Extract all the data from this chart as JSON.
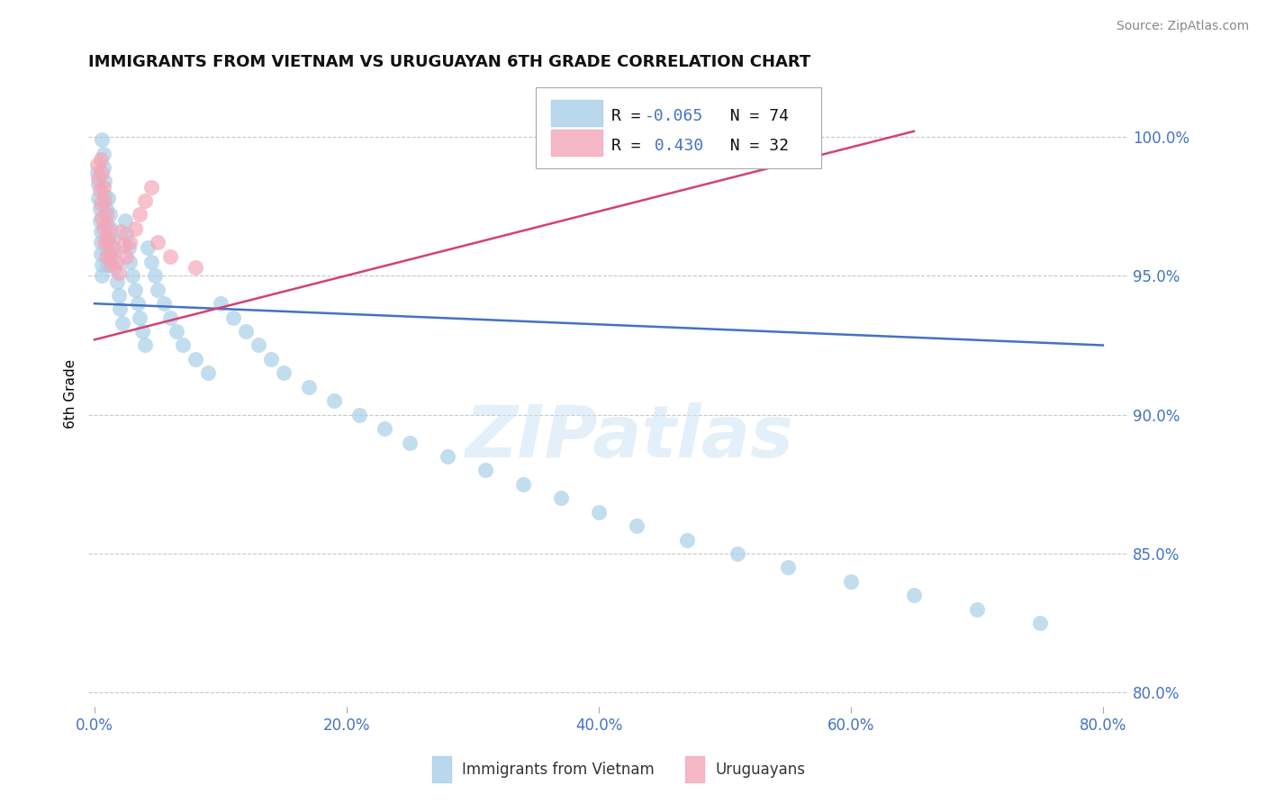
{
  "title": "IMMIGRANTS FROM VIETNAM VS URUGUAYAN 6TH GRADE CORRELATION CHART",
  "source": "Source: ZipAtlas.com",
  "ylabel": "6th Grade",
  "legend_label1": "Immigrants from Vietnam",
  "legend_label2": "Uruguayans",
  "r1": -0.065,
  "n1": 74,
  "r2": 0.43,
  "n2": 32,
  "color_blue": "#a8cfe8",
  "color_pink": "#f4a7b9",
  "color_blue_line": "#4472c4",
  "color_pink_line": "#d44270",
  "color_axis_text": "#4472c4",
  "color_grid": "#c8c8c8",
  "color_r_value": "#4472c4",
  "color_n_value": "#111111",
  "watermark": "ZIPatlas",
  "blue_x": [
    0.002,
    0.003,
    0.003,
    0.004,
    0.004,
    0.005,
    0.005,
    0.005,
    0.006,
    0.006,
    0.006,
    0.007,
    0.007,
    0.008,
    0.008,
    0.009,
    0.009,
    0.01,
    0.01,
    0.01,
    0.011,
    0.012,
    0.013,
    0.014,
    0.015,
    0.016,
    0.018,
    0.019,
    0.02,
    0.022,
    0.024,
    0.025,
    0.027,
    0.028,
    0.03,
    0.032,
    0.034,
    0.036,
    0.038,
    0.04,
    0.042,
    0.045,
    0.048,
    0.05,
    0.055,
    0.06,
    0.065,
    0.07,
    0.08,
    0.09,
    0.1,
    0.11,
    0.12,
    0.13,
    0.14,
    0.15,
    0.17,
    0.19,
    0.21,
    0.23,
    0.25,
    0.28,
    0.31,
    0.34,
    0.37,
    0.4,
    0.43,
    0.47,
    0.51,
    0.55,
    0.6,
    0.65,
    0.7,
    0.75
  ],
  "blue_y": [
    0.987,
    0.983,
    0.978,
    0.974,
    0.97,
    0.966,
    0.962,
    0.958,
    0.954,
    0.95,
    0.999,
    0.994,
    0.989,
    0.984,
    0.979,
    0.974,
    0.969,
    0.964,
    0.959,
    0.954,
    0.978,
    0.972,
    0.967,
    0.963,
    0.958,
    0.953,
    0.948,
    0.943,
    0.938,
    0.933,
    0.97,
    0.965,
    0.96,
    0.955,
    0.95,
    0.945,
    0.94,
    0.935,
    0.93,
    0.925,
    0.96,
    0.955,
    0.95,
    0.945,
    0.94,
    0.935,
    0.93,
    0.925,
    0.92,
    0.915,
    0.94,
    0.935,
    0.93,
    0.925,
    0.92,
    0.915,
    0.91,
    0.905,
    0.9,
    0.895,
    0.89,
    0.885,
    0.88,
    0.875,
    0.87,
    0.865,
    0.86,
    0.855,
    0.85,
    0.845,
    0.84,
    0.835,
    0.83,
    0.825
  ],
  "pink_x": [
    0.002,
    0.003,
    0.004,
    0.005,
    0.005,
    0.006,
    0.006,
    0.007,
    0.007,
    0.008,
    0.008,
    0.009,
    0.009,
    0.01,
    0.01,
    0.011,
    0.012,
    0.013,
    0.015,
    0.017,
    0.019,
    0.021,
    0.023,
    0.025,
    0.028,
    0.032,
    0.036,
    0.04,
    0.045,
    0.05,
    0.06,
    0.08
  ],
  "pink_y": [
    0.99,
    0.985,
    0.981,
    0.992,
    0.976,
    0.987,
    0.971,
    0.982,
    0.967,
    0.977,
    0.962,
    0.972,
    0.957,
    0.968,
    0.963,
    0.963,
    0.958,
    0.954,
    0.96,
    0.955,
    0.951,
    0.966,
    0.961,
    0.957,
    0.962,
    0.967,
    0.972,
    0.977,
    0.982,
    0.962,
    0.957,
    0.953
  ],
  "blue_line_x": [
    0.0,
    0.8
  ],
  "blue_line_y": [
    0.94,
    0.925
  ],
  "pink_line_x": [
    0.0,
    0.65
  ],
  "pink_line_y": [
    0.927,
    1.002
  ],
  "xlim": [
    -0.005,
    0.82
  ],
  "ylim": [
    0.795,
    1.02
  ],
  "xticks": [
    0.0,
    0.2,
    0.4,
    0.6,
    0.8
  ],
  "yticks": [
    0.8,
    0.85,
    0.9,
    0.95,
    1.0
  ]
}
